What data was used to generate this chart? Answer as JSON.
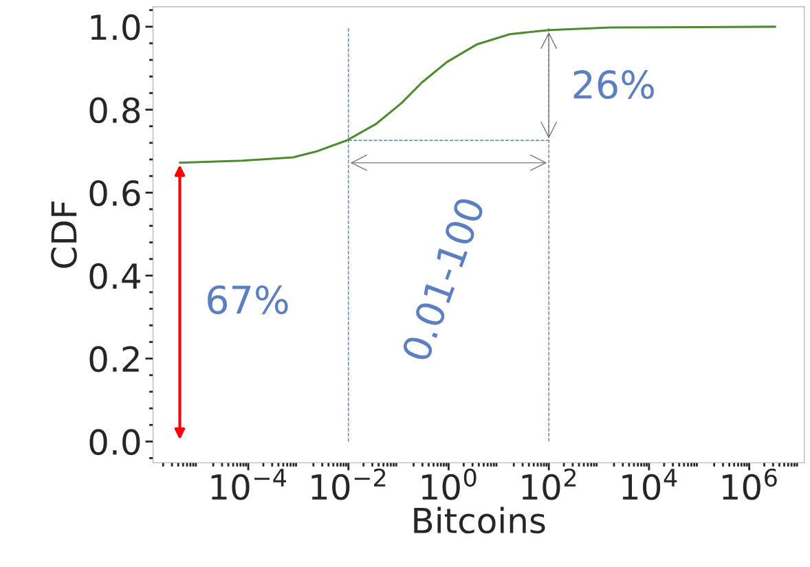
{
  "chart_data": {
    "type": "line",
    "xlabel": "Bitcoins",
    "ylabel": "CDF",
    "log": "x",
    "xlim": [
      1.26e-06,
      12600000.0
    ],
    "ylim": [
      -0.051,
      1.048
    ],
    "xticks": [
      {
        "value": 0.0001,
        "label": "10$^{−4}$"
      },
      {
        "value": 0.01,
        "label": "10$^{−2}$"
      },
      {
        "value": 1,
        "label": "10$^{0}$"
      },
      {
        "value": 100,
        "label": "10$^{2}$"
      },
      {
        "value": 10000,
        "label": "10$^{4}$"
      },
      {
        "value": 1000000,
        "label": "10$^{6}$"
      }
    ],
    "yticks": [
      {
        "value": 0.0,
        "label": "0.0"
      },
      {
        "value": 0.2,
        "label": "0.2"
      },
      {
        "value": 0.4,
        "label": "0.4"
      },
      {
        "value": 0.6,
        "label": "0.6"
      },
      {
        "value": 0.8,
        "label": "0.8"
      },
      {
        "value": 1.0,
        "label": "1.0"
      }
    ],
    "grid": false,
    "legend": false,
    "series": [
      {
        "color": "#4e8a2e",
        "line_style": "solid",
        "x": [
          4.3e-06,
          7.6e-05,
          0.00078,
          0.0024,
          0.0093,
          0.035,
          0.115,
          0.295,
          0.93,
          3.6,
          16.6,
          102,
          1660,
          3300000.0
        ],
        "values": [
          0.672,
          0.677,
          0.685,
          0.7,
          0.726,
          0.765,
          0.816,
          0.866,
          0.915,
          0.957,
          0.982,
          0.992,
          0.998,
          1.0
        ]
      },
      {
        "color": "#5b7fc0",
        "line_style": "dashed",
        "x": [
          0.01,
          0.01
        ],
        "values": [
          0,
          1.0
        ]
      },
      {
        "color": "#5b7fc0",
        "line_style": "dashed",
        "x": [
          100,
          100
        ],
        "values": [
          0,
          1.0
        ]
      },
      {
        "color": "#5b7fc0",
        "line_style": "dashed",
        "x": [
          0.01,
          100
        ],
        "values": [
          0.726,
          0.726
        ]
      }
    ],
    "annotations": [
      "67%",
      "26%",
      "0.01-100"
    ]
  }
}
